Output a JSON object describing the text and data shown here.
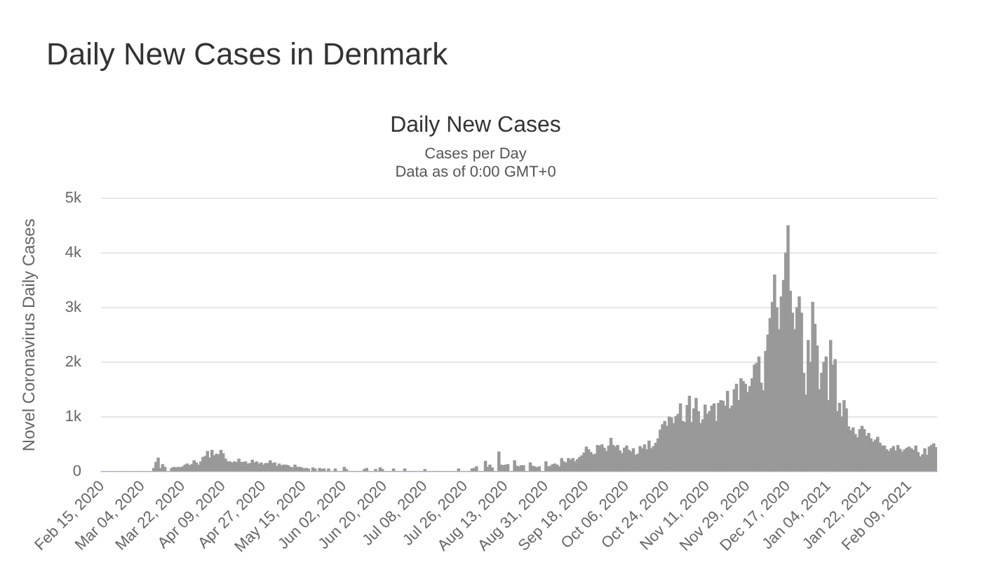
{
  "chart_data": {
    "type": "bar",
    "title": "Daily New Cases in Denmark",
    "subtitle": "Daily New Cases",
    "annotations": [
      "Cases per Day",
      "Data as of 0:00 GMT+0"
    ],
    "ylabel": "Novel Coronavirus Daily Cases",
    "categories": [
      "Feb 15, 2020",
      null,
      null,
      null,
      null,
      null,
      null,
      null,
      null,
      null,
      null,
      null,
      null,
      null,
      null,
      null,
      null,
      null,
      "Mar 04, 2020",
      null,
      null,
      null,
      null,
      null,
      null,
      null,
      null,
      null,
      null,
      null,
      null,
      null,
      null,
      null,
      null,
      null,
      "Mar 22, 2020",
      null,
      null,
      null,
      null,
      null,
      null,
      null,
      null,
      null,
      null,
      null,
      null,
      null,
      null,
      null,
      null,
      null,
      "Apr 09, 2020",
      null,
      null,
      null,
      null,
      null,
      null,
      null,
      null,
      null,
      null,
      null,
      null,
      null,
      null,
      null,
      null,
      null,
      "Apr 27, 2020",
      null,
      null,
      null,
      null,
      null,
      null,
      null,
      null,
      null,
      null,
      null,
      null,
      null,
      null,
      null,
      null,
      null,
      "May 15, 2020",
      null,
      null,
      null,
      null,
      null,
      null,
      null,
      null,
      null,
      null,
      null,
      null,
      null,
      null,
      null,
      null,
      null,
      "Jun 02, 2020",
      null,
      null,
      null,
      null,
      null,
      null,
      null,
      null,
      null,
      null,
      null,
      null,
      null,
      null,
      null,
      null,
      null,
      "Jun 20, 2020",
      null,
      null,
      null,
      null,
      null,
      null,
      null,
      null,
      null,
      null,
      null,
      null,
      null,
      null,
      null,
      null,
      null,
      "Jul 08, 2020",
      null,
      null,
      null,
      null,
      null,
      null,
      null,
      null,
      null,
      null,
      null,
      null,
      null,
      null,
      null,
      null,
      null,
      "Jul 26, 2020",
      null,
      null,
      null,
      null,
      null,
      null,
      null,
      null,
      null,
      null,
      null,
      null,
      null,
      null,
      null,
      null,
      null,
      "Aug 13, 2020",
      null,
      null,
      null,
      null,
      null,
      null,
      null,
      null,
      null,
      null,
      null,
      null,
      null,
      null,
      null,
      null,
      null,
      "Aug 31, 2020",
      null,
      null,
      null,
      null,
      null,
      null,
      null,
      null,
      null,
      null,
      null,
      null,
      null,
      null,
      null,
      null,
      null,
      "Sep 18, 2020",
      null,
      null,
      null,
      null,
      null,
      null,
      null,
      null,
      null,
      null,
      null,
      null,
      null,
      null,
      null,
      null,
      null,
      "Oct 06, 2020",
      null,
      null,
      null,
      null,
      null,
      null,
      null,
      null,
      null,
      null,
      null,
      null,
      null,
      null,
      null,
      null,
      null,
      "Oct 24, 2020",
      null,
      null,
      null,
      null,
      null,
      null,
      null,
      null,
      null,
      null,
      null,
      null,
      null,
      null,
      null,
      null,
      null,
      "Nov 11, 2020",
      null,
      null,
      null,
      null,
      null,
      null,
      null,
      null,
      null,
      null,
      null,
      null,
      null,
      null,
      null,
      null,
      null,
      "Nov 29, 2020",
      null,
      null,
      null,
      null,
      null,
      null,
      null,
      null,
      null,
      null,
      null,
      null,
      null,
      null,
      null,
      null,
      null,
      "Dec 17, 2020",
      null,
      null,
      null,
      null,
      null,
      null,
      null,
      null,
      null,
      null,
      null,
      null,
      null,
      null,
      null,
      null,
      null,
      "Jan 04, 2021",
      null,
      null,
      null,
      null,
      null,
      null,
      null,
      null,
      null,
      null,
      null,
      null,
      null,
      null,
      null,
      null,
      null,
      "Jan 22, 2021",
      null,
      null,
      null,
      null,
      null,
      null,
      null,
      null,
      null,
      null,
      null,
      null,
      null,
      null,
      null,
      null,
      null,
      "Feb 09, 2021",
      null,
      null,
      null,
      null,
      null,
      null,
      null,
      null,
      null,
      null,
      null,
      null
    ],
    "values": [
      0,
      0,
      0,
      0,
      0,
      0,
      0,
      0,
      0,
      0,
      0,
      0,
      0,
      0,
      0,
      0,
      0,
      0,
      0,
      0,
      0,
      0,
      0,
      60,
      170,
      250,
      60,
      130,
      80,
      0,
      0,
      60,
      80,
      70,
      80,
      70,
      90,
      120,
      140,
      110,
      130,
      200,
      160,
      120,
      180,
      260,
      280,
      370,
      250,
      390,
      290,
      320,
      310,
      390,
      330,
      230,
      180,
      180,
      160,
      180,
      170,
      230,
      170,
      170,
      180,
      140,
      150,
      210,
      160,
      180,
      140,
      160,
      120,
      150,
      150,
      200,
      150,
      160,
      100,
      140,
      110,
      120,
      120,
      110,
      80,
      70,
      120,
      80,
      80,
      70,
      50,
      60,
      50,
      0,
      70,
      50,
      0,
      60,
      40,
      50,
      0,
      50,
      0,
      0,
      50,
      0,
      0,
      0,
      80,
      40,
      0,
      0,
      0,
      0,
      0,
      0,
      0,
      40,
      60,
      0,
      0,
      0,
      40,
      0,
      70,
      40,
      0,
      0,
      0,
      0,
      50,
      0,
      0,
      0,
      0,
      50,
      0,
      0,
      0,
      0,
      0,
      0,
      0,
      0,
      40,
      0,
      0,
      0,
      0,
      0,
      0,
      0,
      0,
      0,
      0,
      0,
      0,
      0,
      0,
      50,
      0,
      0,
      0,
      0,
      0,
      50,
      60,
      90,
      0,
      0,
      0,
      190,
      80,
      120,
      70,
      0,
      0,
      360,
      120,
      110,
      120,
      130,
      0,
      0,
      200,
      100,
      90,
      110,
      110,
      0,
      0,
      160,
      100,
      90,
      70,
      90,
      0,
      0,
      180,
      90,
      100,
      130,
      140,
      120,
      90,
      240,
      180,
      160,
      240,
      210,
      240,
      180,
      220,
      260,
      290,
      340,
      450,
      400,
      350,
      310,
      320,
      480,
      470,
      490,
      430,
      370,
      470,
      610,
      480,
      450,
      480,
      380,
      330,
      430,
      470,
      390,
      360,
      420,
      300,
      320,
      460,
      420,
      490,
      400,
      560,
      420,
      460,
      520,
      600,
      760,
      860,
      920,
      830,
      1000,
      980,
      880,
      1010,
      1050,
      1240,
      920,
      900,
      1210,
      1380,
      900,
      1150,
      1340,
      1100,
      880,
      950,
      1220,
      1050,
      1100,
      1200,
      1240,
      920,
      1250,
      1300,
      1290,
      1200,
      1470,
      1150,
      1200,
      1500,
      1600,
      1300,
      1700,
      1650,
      1600,
      1450,
      1560,
      1700,
      1950,
      1980,
      2100,
      1620,
      1480,
      2200,
      2500,
      2800,
      3100,
      3600,
      3000,
      2600,
      3200,
      3500,
      4000,
      4500,
      3300,
      2900,
      2600,
      3000,
      3200,
      2900,
      1800,
      1400,
      2400,
      2000,
      3100,
      2700,
      2300,
      1500,
      1800,
      2000,
      2100,
      1300,
      2400,
      1950,
      2050,
      1100,
      1250,
      1000,
      1300,
      1150,
      820,
      750,
      800,
      680,
      620,
      770,
      830,
      770,
      650,
      700,
      600,
      540,
      580,
      630,
      520,
      470,
      470,
      400,
      370,
      420,
      460,
      380,
      480,
      410,
      360,
      400,
      430,
      450,
      420,
      390,
      470,
      350,
      270,
      310,
      420,
      300,
      450,
      480,
      510,
      440
    ],
    "color": "#999999",
    "ylim": [
      0,
      5000
    ],
    "yticks": [
      0,
      {
        "value": 1000,
        "label": "1k"
      },
      {
        "value": 2000,
        "label": "2k"
      },
      {
        "value": 3000,
        "label": "3k"
      },
      {
        "value": 4000,
        "label": "4k"
      },
      {
        "value": 5000,
        "label": "5k"
      }
    ],
    "grid": "y",
    "legend": false
  }
}
